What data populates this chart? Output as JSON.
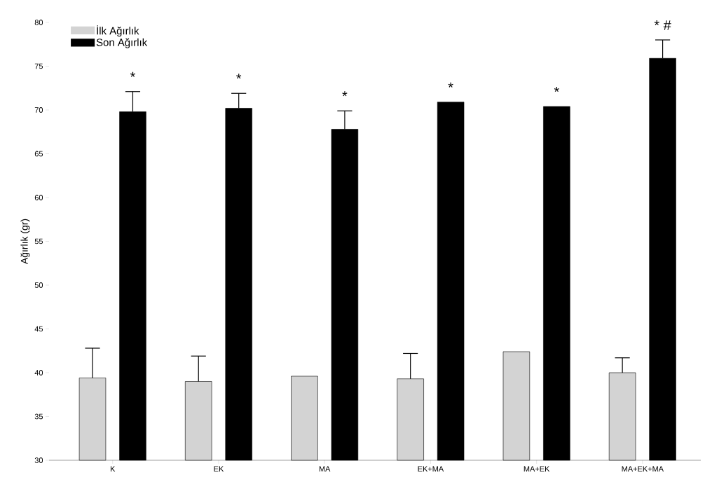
{
  "chart_data": {
    "type": "bar",
    "ylabel": "Ağırlık (gr)",
    "categories": [
      "K",
      "EK",
      "MA",
      "EK+MA",
      "MA+EK",
      "MA+EK+MA"
    ],
    "series": [
      {
        "name": "İlk Ağırlık",
        "color": "#d3d3d3",
        "values": [
          39.4,
          39.0,
          39.6,
          39.3,
          42.4,
          40.0
        ],
        "errors": [
          [
            39.4,
            42.8
          ],
          [
            39.0,
            41.9
          ],
          null,
          [
            39.3,
            42.2
          ],
          null,
          [
            40.0,
            41.7
          ]
        ]
      },
      {
        "name": "Son Ağırlık",
        "color": "#000000",
        "values": [
          69.8,
          70.2,
          67.8,
          70.9,
          70.4,
          75.9
        ],
        "errors": [
          [
            69.8,
            72.1
          ],
          [
            70.2,
            71.9
          ],
          [
            67.8,
            69.9
          ],
          null,
          null,
          [
            75.9,
            78.0
          ]
        ]
      }
    ],
    "annotations": [
      "*",
      "*",
      "*",
      "*",
      "*",
      "*   #"
    ],
    "ylim": [
      30,
      80
    ],
    "yticks": [
      30,
      35,
      40,
      45,
      50,
      55,
      60,
      65,
      70,
      75,
      80
    ],
    "legend": "top left",
    "grid": false
  }
}
